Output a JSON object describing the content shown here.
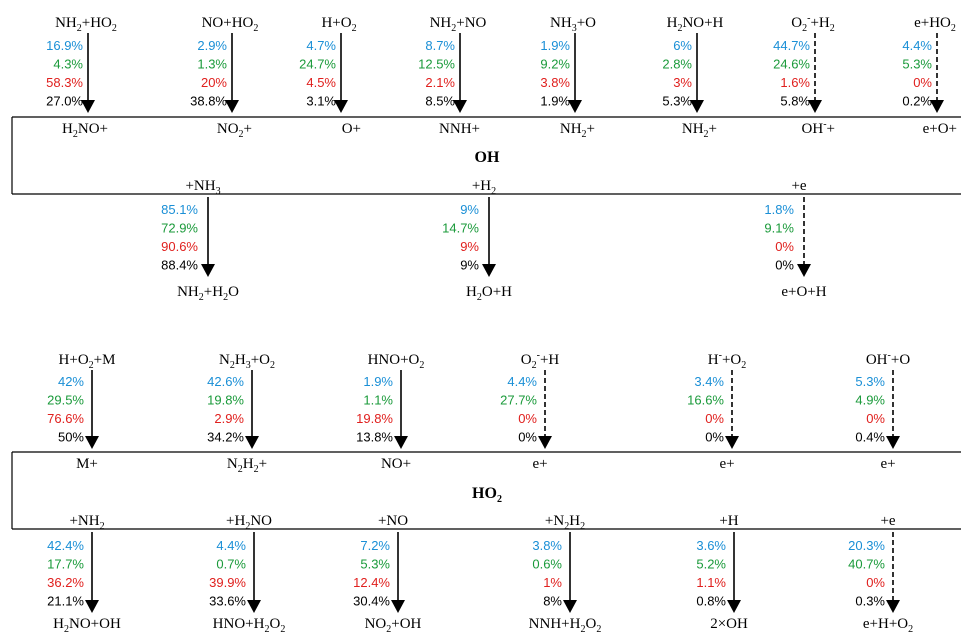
{
  "colors": {
    "blue": "#1a8fd6",
    "green": "#1a9a3a",
    "red": "#e0201e",
    "black": "#000000"
  },
  "oh": {
    "species": "OH",
    "production": [
      {
        "reactant": "NH<sub>2</sub>+HO<sub>2</sub>",
        "product": "H<sub>2</sub>NO+",
        "values": [
          "16.9%",
          "4.3%",
          "58.3%",
          "27.0%"
        ],
        "dashed": false
      },
      {
        "reactant": "NO+HO<sub>2</sub>",
        "product": "NO<sub>2</sub>+",
        "values": [
          "2.9%",
          "1.3%",
          "20%",
          "38.8%"
        ],
        "dashed": false
      },
      {
        "reactant": "H+O<sub>2</sub>",
        "product": "O+",
        "values": [
          "4.7%",
          "24.7%",
          "4.5%",
          "3.1%"
        ],
        "dashed": false
      },
      {
        "reactant": "NH<sub>2</sub>+NO",
        "product": "NNH+",
        "values": [
          "8.7%",
          "12.5%",
          "2.1%",
          "8.5%"
        ],
        "dashed": false
      },
      {
        "reactant": "NH<sub>3</sub>+O",
        "product": "NH<sub>2</sub>+",
        "values": [
          "1.9%",
          "9.2%",
          "3.8%",
          "1.9%"
        ],
        "dashed": false
      },
      {
        "reactant": "H<sub>2</sub>NO+H",
        "product": "NH<sub>2</sub>+",
        "values": [
          "6%",
          "2.8%",
          "3%",
          "5.3%"
        ],
        "dashed": false
      },
      {
        "reactant": "O<sub>2</sub><sup>-</sup>+H<sub>2</sub>",
        "product": "OH<sup>-</sup>+",
        "values": [
          "44.7%",
          "24.6%",
          "1.6%",
          "5.8%"
        ],
        "dashed": true
      },
      {
        "reactant": "e+HO<sub>2</sub>",
        "product": "e+O+",
        "values": [
          "4.4%",
          "5.3%",
          "0%",
          "0.2%"
        ],
        "dashed": true
      }
    ],
    "consumption": [
      {
        "reactant": "+NH<sub>3</sub>",
        "product": "NH<sub>2</sub>+H<sub>2</sub>O",
        "values": [
          "85.1%",
          "72.9%",
          "90.6%",
          "88.4%"
        ],
        "dashed": false
      },
      {
        "reactant": "+H<sub>2</sub>",
        "product": "H<sub>2</sub>O+H",
        "values": [
          "9%",
          "14.7%",
          "9%",
          "9%"
        ],
        "dashed": false
      },
      {
        "reactant": "+e",
        "product": "e+O+H",
        "values": [
          "1.8%",
          "9.1%",
          "0%",
          "0%"
        ],
        "dashed": true
      }
    ]
  },
  "ho2": {
    "species": "HO<sub>2</sub>",
    "production": [
      {
        "reactant": "H+O<sub>2</sub>+M",
        "product": "M+",
        "values": [
          "42%",
          "29.5%",
          "76.6%",
          "50%"
        ],
        "dashed": false
      },
      {
        "reactant": "N<sub>2</sub>H<sub>3</sub>+O<sub>2</sub>",
        "product": "N<sub>2</sub>H<sub>2</sub>+",
        "values": [
          "42.6%",
          "19.8%",
          "2.9%",
          "34.2%"
        ],
        "dashed": false
      },
      {
        "reactant": "HNO+O<sub>2</sub>",
        "product": "NO+",
        "values": [
          "1.9%",
          "1.1%",
          "19.8%",
          "13.8%"
        ],
        "dashed": false
      },
      {
        "reactant": "O<sub>2</sub><sup>-</sup>+H",
        "product": "e+",
        "values": [
          "4.4%",
          "27.7%",
          "0%",
          "0%"
        ],
        "dashed": true
      },
      {
        "reactant": "H<sup>-</sup>+O<sub>2</sub>",
        "product": "e+",
        "values": [
          "3.4%",
          "16.6%",
          "0%",
          "0%"
        ],
        "dashed": true
      },
      {
        "reactant": "OH<sup>-</sup>+O",
        "product": "e+",
        "values": [
          "5.3%",
          "4.9%",
          "0%",
          "0.4%"
        ],
        "dashed": true
      }
    ],
    "consumption": [
      {
        "reactant": "+NH<sub>2</sub>",
        "product": "H<sub>2</sub>NO+OH",
        "values": [
          "42.4%",
          "17.7%",
          "36.2%",
          "21.1%"
        ],
        "dashed": false
      },
      {
        "reactant": "+H<sub>2</sub>NO",
        "product": "HNO+H<sub>2</sub>O<sub>2</sub>",
        "values": [
          "4.4%",
          "0.7%",
          "39.9%",
          "33.6%"
        ],
        "dashed": false
      },
      {
        "reactant": "+NO",
        "product": "NO<sub>2</sub>+OH",
        "values": [
          "7.2%",
          "5.3%",
          "12.4%",
          "30.4%"
        ],
        "dashed": false
      },
      {
        "reactant": "+N<sub>2</sub>H<sub>2</sub>",
        "product": "NNH+H<sub>2</sub>O<sub>2</sub>",
        "values": [
          "3.8%",
          "0.6%",
          "1%",
          "8%"
        ],
        "dashed": false
      },
      {
        "reactant": "+H",
        "product": "2×OH",
        "values": [
          "3.6%",
          "5.2%",
          "1.1%",
          "0.8%"
        ],
        "dashed": false
      },
      {
        "reactant": "+e",
        "product": "e+H+O<sub>2</sub>",
        "values": [
          "20.3%",
          "40.7%",
          "0%",
          "0.3%"
        ],
        "dashed": true
      }
    ]
  }
}
